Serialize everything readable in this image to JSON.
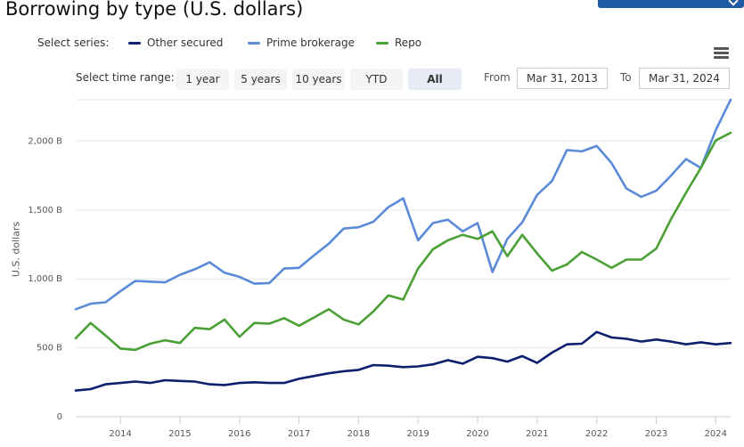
{
  "header": {
    "title": "Borrowing by type (U.S. dollars)"
  },
  "legend": {
    "label": "Select series:",
    "items": [
      {
        "name": "Other secured",
        "color": "#0d1f6e"
      },
      {
        "name": "Prime brokerage",
        "color": "#5b8bd8"
      },
      {
        "name": "Repo",
        "color": "#4aa034"
      }
    ]
  },
  "range_selector": {
    "label": "Select time range:",
    "buttons": [
      "1 year",
      "5 years",
      "10 years",
      "YTD",
      "All"
    ],
    "active": "All",
    "from_label": "From",
    "from_value": "Mar 31, 2013",
    "to_label": "To",
    "to_value": "Mar 31, 2024"
  },
  "chart_data": {
    "type": "line",
    "ylabel": "U.S. dollars",
    "ylim": [
      0,
      2300
    ],
    "yticks": [
      0,
      500,
      1000,
      1500,
      2000
    ],
    "ytick_labels": [
      "0",
      "500 B",
      "1,000 B",
      "1,500 B",
      "2,000 B"
    ],
    "xlim": [
      2013.25,
      2024.25
    ],
    "xticks": [
      2014,
      2015,
      2016,
      2017,
      2018,
      2019,
      2020,
      2021,
      2022,
      2023,
      2024
    ],
    "xtick_labels": [
      "2014",
      "2015",
      "2016",
      "2017",
      "2018",
      "2019",
      "2020",
      "2021",
      "2022",
      "2023",
      "2024"
    ],
    "grid": true,
    "legend_position": "top-left",
    "series": [
      {
        "name": "Other secured",
        "color": "#0d1f6e",
        "points": [
          [
            2013.25,
            190
          ],
          [
            2013.5,
            200
          ],
          [
            2013.75,
            235
          ],
          [
            2014.0,
            245
          ],
          [
            2014.25,
            255
          ],
          [
            2014.5,
            245
          ],
          [
            2014.75,
            265
          ],
          [
            2015.0,
            260
          ],
          [
            2015.25,
            255
          ],
          [
            2015.5,
            235
          ],
          [
            2015.75,
            230
          ],
          [
            2016.0,
            245
          ],
          [
            2016.25,
            250
          ],
          [
            2016.5,
            245
          ],
          [
            2016.75,
            245
          ],
          [
            2017.0,
            275
          ],
          [
            2017.25,
            295
          ],
          [
            2017.5,
            315
          ],
          [
            2017.75,
            330
          ],
          [
            2018.0,
            340
          ],
          [
            2018.25,
            375
          ],
          [
            2018.5,
            370
          ],
          [
            2018.75,
            360
          ],
          [
            2019.0,
            365
          ],
          [
            2019.25,
            380
          ],
          [
            2019.5,
            410
          ],
          [
            2019.75,
            385
          ],
          [
            2020.0,
            435
          ],
          [
            2020.25,
            425
          ],
          [
            2020.5,
            400
          ],
          [
            2020.75,
            440
          ],
          [
            2021.0,
            390
          ],
          [
            2021.25,
            465
          ],
          [
            2021.5,
            525
          ],
          [
            2021.75,
            530
          ],
          [
            2022.0,
            615
          ],
          [
            2022.25,
            575
          ],
          [
            2022.5,
            565
          ],
          [
            2022.75,
            545
          ],
          [
            2023.0,
            560
          ],
          [
            2023.25,
            545
          ],
          [
            2023.5,
            525
          ],
          [
            2023.75,
            540
          ],
          [
            2024.0,
            525
          ],
          [
            2024.25,
            535
          ]
        ]
      },
      {
        "name": "Prime brokerage",
        "color": "#5b8bd8",
        "points": [
          [
            2013.25,
            780
          ],
          [
            2013.5,
            820
          ],
          [
            2013.75,
            830
          ],
          [
            2014.0,
            910
          ],
          [
            2014.25,
            985
          ],
          [
            2014.5,
            980
          ],
          [
            2014.75,
            975
          ],
          [
            2015.0,
            1030
          ],
          [
            2015.25,
            1070
          ],
          [
            2015.5,
            1120
          ],
          [
            2015.75,
            1045
          ],
          [
            2016.0,
            1015
          ],
          [
            2016.25,
            965
          ],
          [
            2016.5,
            970
          ],
          [
            2016.75,
            1075
          ],
          [
            2017.0,
            1080
          ],
          [
            2017.25,
            1170
          ],
          [
            2017.5,
            1255
          ],
          [
            2017.75,
            1365
          ],
          [
            2018.0,
            1375
          ],
          [
            2018.25,
            1415
          ],
          [
            2018.5,
            1520
          ],
          [
            2018.75,
            1585
          ],
          [
            2019.0,
            1280
          ],
          [
            2019.25,
            1405
          ],
          [
            2019.5,
            1430
          ],
          [
            2019.75,
            1345
          ],
          [
            2020.0,
            1405
          ],
          [
            2020.25,
            1050
          ],
          [
            2020.5,
            1290
          ],
          [
            2020.75,
            1410
          ],
          [
            2021.0,
            1610
          ],
          [
            2021.25,
            1710
          ],
          [
            2021.5,
            1935
          ],
          [
            2021.75,
            1925
          ],
          [
            2022.0,
            1965
          ],
          [
            2022.25,
            1840
          ],
          [
            2022.5,
            1655
          ],
          [
            2022.75,
            1595
          ],
          [
            2023.0,
            1640
          ],
          [
            2023.25,
            1750
          ],
          [
            2023.5,
            1870
          ],
          [
            2023.75,
            1805
          ],
          [
            2024.0,
            2080
          ],
          [
            2024.25,
            2300
          ]
        ]
      },
      {
        "name": "Repo",
        "color": "#4aa034",
        "points": [
          [
            2013.25,
            570
          ],
          [
            2013.5,
            680
          ],
          [
            2013.75,
            590
          ],
          [
            2014.0,
            495
          ],
          [
            2014.25,
            485
          ],
          [
            2014.5,
            530
          ],
          [
            2014.75,
            555
          ],
          [
            2015.0,
            535
          ],
          [
            2015.25,
            645
          ],
          [
            2015.5,
            635
          ],
          [
            2015.75,
            705
          ],
          [
            2016.0,
            580
          ],
          [
            2016.25,
            680
          ],
          [
            2016.5,
            675
          ],
          [
            2016.75,
            715
          ],
          [
            2017.0,
            660
          ],
          [
            2017.25,
            720
          ],
          [
            2017.5,
            780
          ],
          [
            2017.75,
            705
          ],
          [
            2018.0,
            670
          ],
          [
            2018.25,
            765
          ],
          [
            2018.5,
            880
          ],
          [
            2018.75,
            850
          ],
          [
            2019.0,
            1075
          ],
          [
            2019.25,
            1215
          ],
          [
            2019.5,
            1280
          ],
          [
            2019.75,
            1320
          ],
          [
            2020.0,
            1290
          ],
          [
            2020.25,
            1345
          ],
          [
            2020.5,
            1165
          ],
          [
            2020.75,
            1320
          ],
          [
            2021.0,
            1185
          ],
          [
            2021.25,
            1060
          ],
          [
            2021.5,
            1105
          ],
          [
            2021.75,
            1195
          ],
          [
            2022.0,
            1140
          ],
          [
            2022.25,
            1080
          ],
          [
            2022.5,
            1140
          ],
          [
            2022.75,
            1140
          ],
          [
            2023.0,
            1220
          ],
          [
            2023.25,
            1435
          ],
          [
            2023.5,
            1625
          ],
          [
            2023.75,
            1805
          ],
          [
            2024.0,
            2005
          ],
          [
            2024.25,
            2060
          ]
        ]
      }
    ]
  }
}
